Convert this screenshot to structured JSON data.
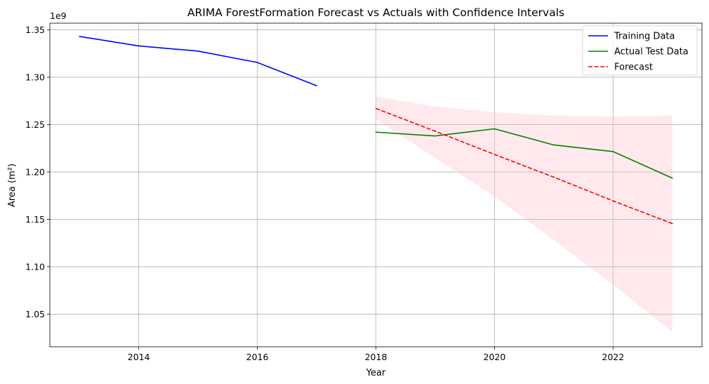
{
  "chart_data": {
    "type": "line",
    "title": "ARIMA ForestFormation Forecast vs Actuals with Confidence Intervals",
    "xlabel": "Year",
    "ylabel": "Area (m²)",
    "y_offset_label": "1e9",
    "xlim": [
      2012.5,
      2023.5
    ],
    "ylim": [
      1.0155,
      1.357
    ],
    "x_ticks": [
      2014,
      2016,
      2018,
      2020,
      2022
    ],
    "x_tick_labels": [
      "2014",
      "2016",
      "2018",
      "2020",
      "2022"
    ],
    "y_ticks": [
      1.05,
      1.1,
      1.15,
      1.2,
      1.25,
      1.3,
      1.35
    ],
    "y_tick_labels": [
      "1.05",
      "1.10",
      "1.15",
      "1.20",
      "1.25",
      "1.30",
      "1.35"
    ],
    "y_unit_multiplier": 1000000000,
    "grid": true,
    "legend_position": "top-right",
    "series": [
      {
        "name": "Training Data",
        "color": "#0000ff",
        "style": "solid",
        "x": [
          2013,
          2014,
          2015,
          2016,
          2017
        ],
        "y": [
          1.343,
          1.333,
          1.3275,
          1.3155,
          1.291
        ]
      },
      {
        "name": "Actual Test Data",
        "color": "#008000",
        "style": "solid",
        "x": [
          2018,
          2019,
          2020,
          2021,
          2022,
          2023
        ],
        "y": [
          1.242,
          1.238,
          1.2455,
          1.2285,
          1.2215,
          1.1935
        ]
      },
      {
        "name": "Forecast",
        "color": "#ff0000",
        "style": "dashed",
        "x": [
          2018,
          2019,
          2020,
          2021,
          2022,
          2023
        ],
        "y": [
          1.267,
          1.243,
          1.2185,
          1.1945,
          1.1695,
          1.1455
        ]
      }
    ],
    "confidence_interval": {
      "color": "#ffc0cb",
      "x": [
        2018,
        2019,
        2020,
        2021,
        2022,
        2023
      ],
      "lower": [
        1.2555,
        1.215,
        1.174,
        1.1285,
        1.081,
        1.031
      ],
      "upper": [
        1.2795,
        1.269,
        1.263,
        1.2595,
        1.2585,
        1.2595
      ]
    }
  }
}
